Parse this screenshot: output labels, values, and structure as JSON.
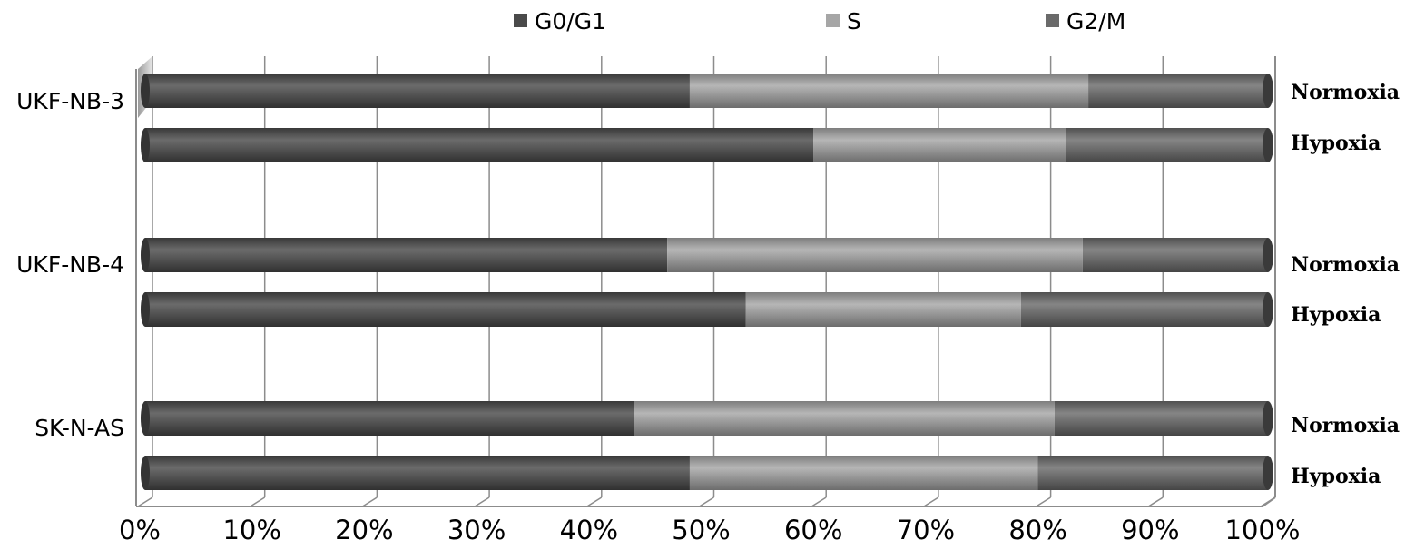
{
  "chart_data": {
    "type": "bar",
    "orientation": "horizontal",
    "stacked": "percent",
    "title": "",
    "xlabel": "",
    "ylabel": "",
    "xlim": [
      0,
      100
    ],
    "x_ticks": [
      "0%",
      "10%",
      "20%",
      "30%",
      "40%",
      "50%",
      "60%",
      "70%",
      "80%",
      "90%",
      "100%"
    ],
    "grid": "vertical",
    "legend_position": "top",
    "groups": [
      {
        "name": "UKF-NB-3",
        "bars": [
          {
            "condition": "Normoxia",
            "values": [
              48.5,
              35.5,
              16.0
            ]
          },
          {
            "condition": "Hypoxia",
            "values": [
              59.5,
              22.5,
              18.0
            ]
          }
        ]
      },
      {
        "name": "UKF-NB-4",
        "bars": [
          {
            "condition": "Normoxia",
            "values": [
              46.5,
              37.0,
              16.5
            ]
          },
          {
            "condition": "Hypoxia",
            "values": [
              53.5,
              24.5,
              22.0
            ]
          }
        ]
      },
      {
        "name": "SK-N-AS",
        "bars": [
          {
            "condition": "Normoxia",
            "values": [
              43.5,
              37.5,
              19.0
            ]
          },
          {
            "condition": "Hypoxia",
            "values": [
              48.5,
              31.0,
              20.5
            ]
          }
        ]
      }
    ],
    "series": [
      {
        "name": "G0/G1",
        "color": "#4a4a4a"
      },
      {
        "name": "S",
        "color": "#a6a6a6"
      },
      {
        "name": "G2/M",
        "color": "#6a6a6a"
      }
    ]
  }
}
